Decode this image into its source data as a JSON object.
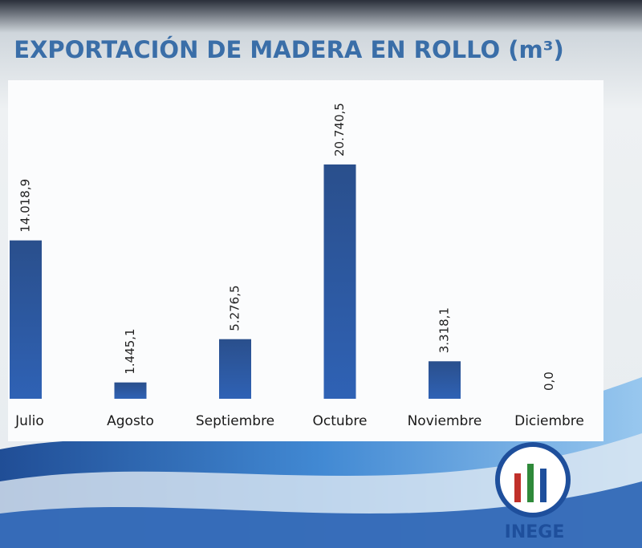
{
  "chart_data": {
    "type": "bar",
    "title": "EXPORTACIÓN DE MADERA EN ROLLO (m³)",
    "categories": [
      "Julio",
      "Agosto",
      "Septiembre",
      "Octubre",
      "Noviembre",
      "Diciembre"
    ],
    "values": [
      14018.9,
      1445.1,
      5276.5,
      20740.5,
      3318.1,
      0.0
    ],
    "value_labels": [
      "14.018,9",
      "1.445,1",
      "5.276,5",
      "20.740,5",
      "3.318,1",
      "0,0"
    ],
    "color": "#2d5aa0"
  },
  "logo_text": "INEGE"
}
